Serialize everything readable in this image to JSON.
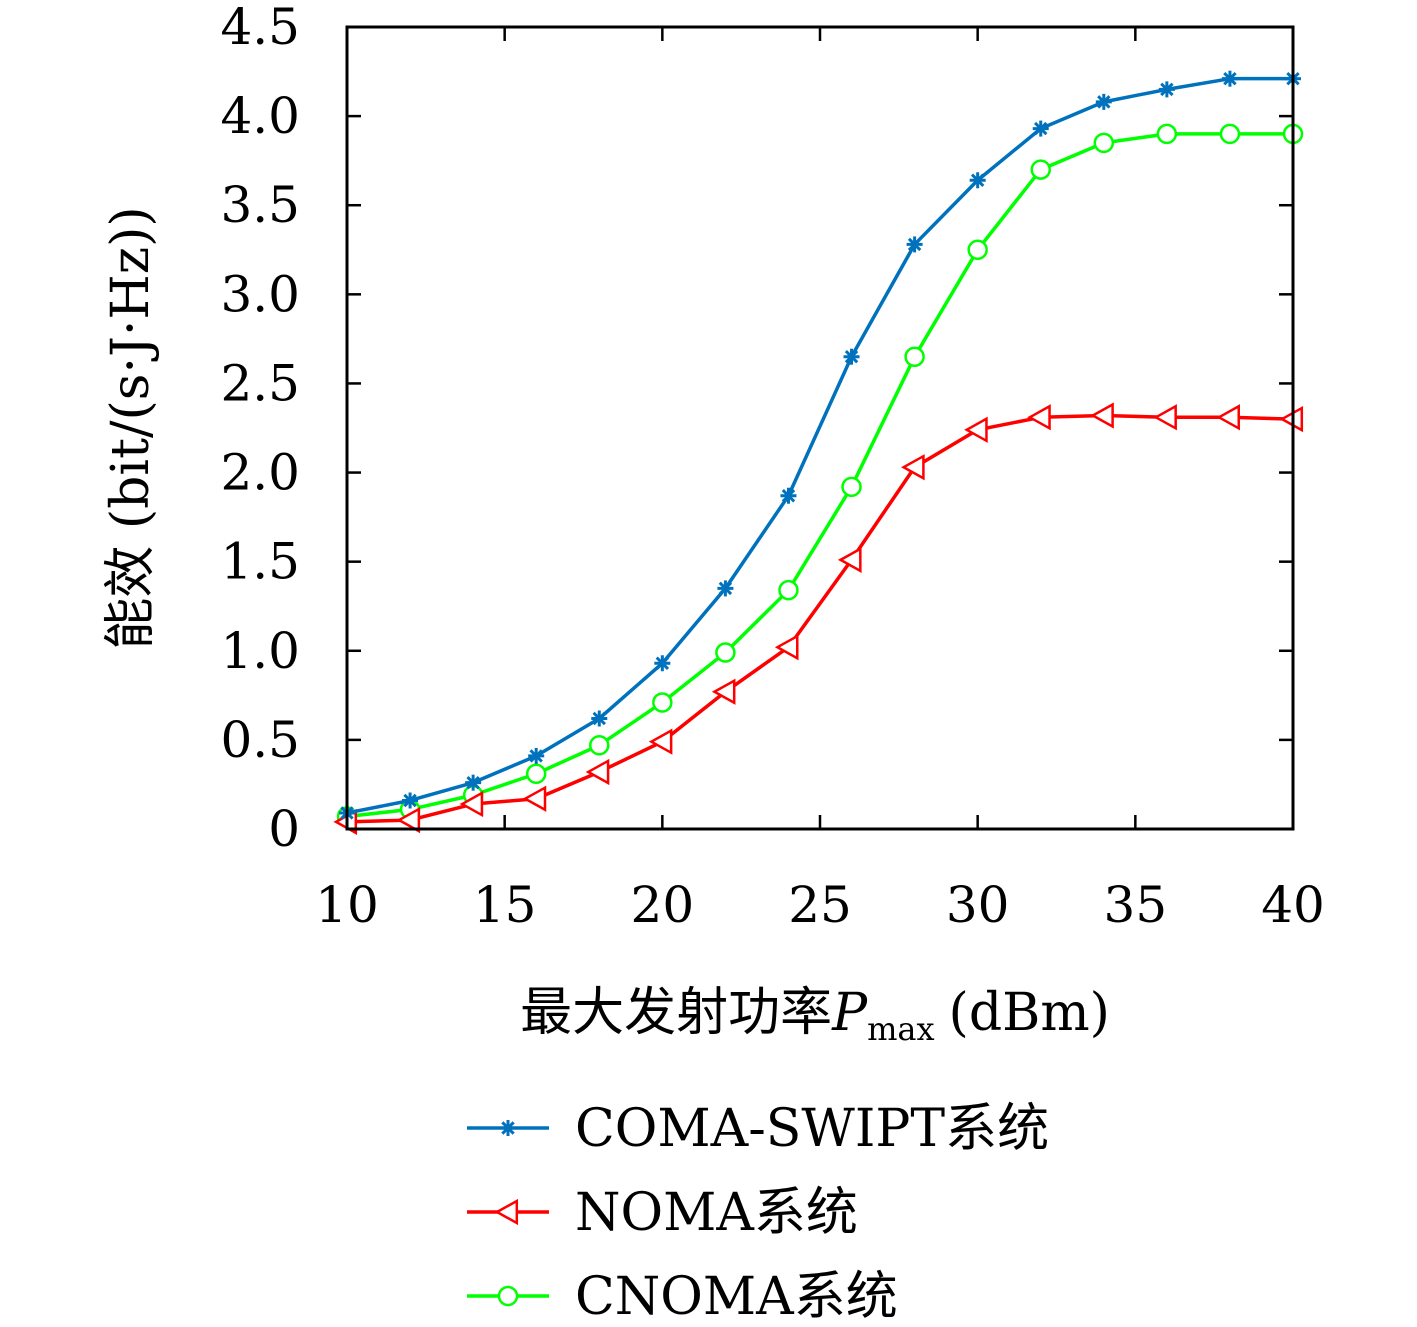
{
  "chart_data": {
    "type": "line",
    "xlabel": "最大发射功率",
    "xlabel_symbol": "P",
    "xlabel_sub": "max",
    "xlabel_unit": "(dBm)",
    "ylabel": "能效 (bit/(s·J·Hz))",
    "xlim": [
      10,
      40
    ],
    "ylim": [
      0,
      4.5
    ],
    "xticks": [
      10,
      15,
      20,
      25,
      30,
      35,
      40
    ],
    "xtick_labels": [
      "10",
      "15",
      "20",
      "25",
      "30",
      "35",
      "40"
    ],
    "yticks": [
      0,
      0.5,
      1.0,
      1.5,
      2.0,
      2.5,
      3.0,
      3.5,
      4.0,
      4.5
    ],
    "ytick_labels": [
      "0",
      "0.5",
      "1.0",
      "1.5",
      "2.0",
      "2.5",
      "3.0",
      "3.5",
      "4.0",
      "4.5"
    ],
    "grid": false,
    "legend_position": "below",
    "x": [
      10,
      12,
      14,
      16,
      18,
      20,
      22,
      24,
      26,
      28,
      30,
      32,
      34,
      36,
      38,
      40
    ],
    "series": [
      {
        "name": "COMA-SWIPT系统",
        "color": "#0072bd",
        "marker": "asterisk",
        "values": [
          0.09,
          0.16,
          0.26,
          0.41,
          0.62,
          0.93,
          1.35,
          1.87,
          2.65,
          3.28,
          3.64,
          3.93,
          4.08,
          4.15,
          4.21,
          4.21
        ]
      },
      {
        "name": "NOMA系统",
        "color": "#ff0000",
        "marker": "triangle-left",
        "values": [
          0.04,
          0.05,
          0.14,
          0.17,
          0.32,
          0.49,
          0.77,
          1.02,
          1.51,
          2.03,
          2.24,
          2.31,
          2.32,
          2.31,
          2.31,
          2.3
        ]
      },
      {
        "name": "CNOMA系统",
        "color": "#00ff00",
        "marker": "circle",
        "values": [
          0.07,
          0.11,
          0.19,
          0.31,
          0.47,
          0.71,
          0.99,
          1.34,
          1.92,
          2.65,
          3.25,
          3.7,
          3.85,
          3.9,
          3.9,
          3.9
        ]
      }
    ]
  }
}
